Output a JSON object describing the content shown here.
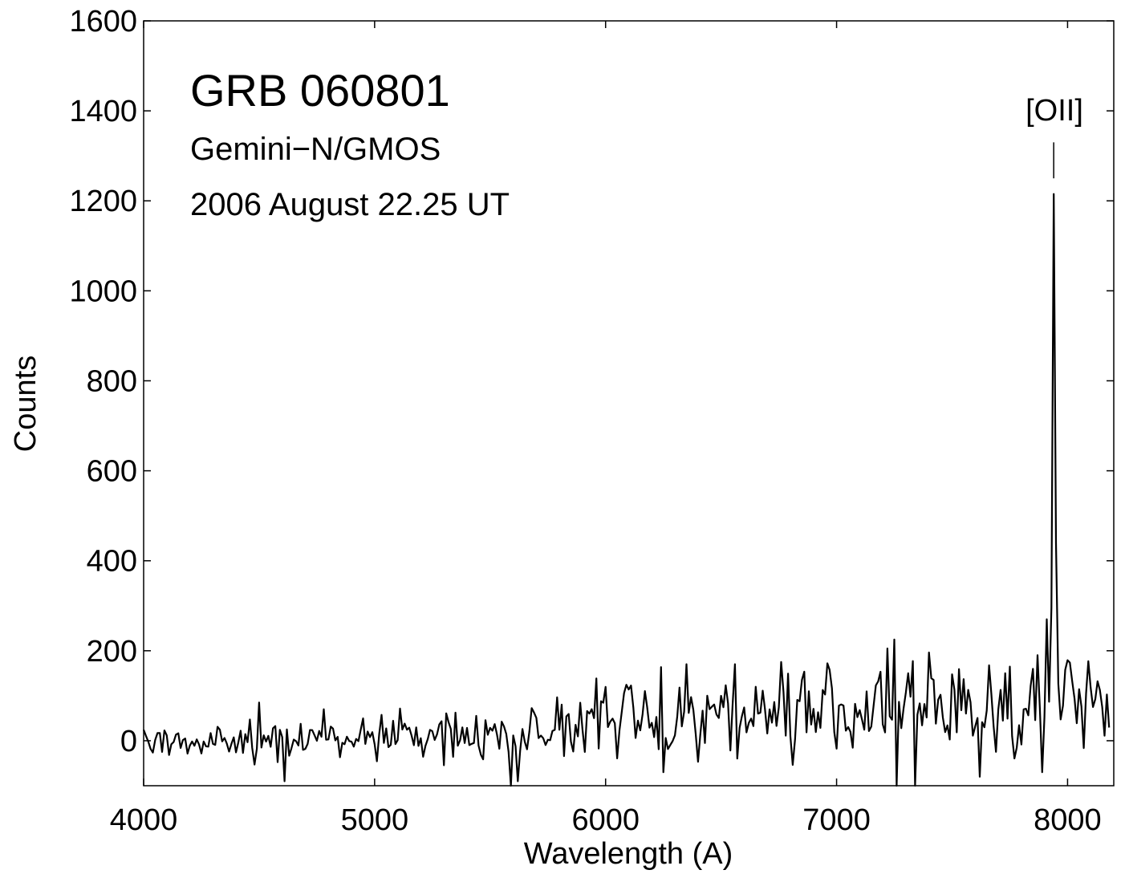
{
  "chart_data": {
    "type": "line",
    "xlabel": "Wavelength  (A)",
    "ylabel": "Counts",
    "xlim": [
      4000,
      8200
    ],
    "ylim": [
      -100,
      1600
    ],
    "xticks": [
      4000,
      5000,
      6000,
      7000,
      8000
    ],
    "yticks": [
      0,
      200,
      400,
      600,
      800,
      1000,
      1200,
      1400,
      1600
    ],
    "grid": false,
    "annotations": {
      "title": "GRB 060801",
      "instrument": "Gemini−N/GMOS",
      "date": "2006 August 22.25 UT"
    },
    "line_marker": {
      "label": "[OII]",
      "x": 7940,
      "y_top": 1330,
      "y_bottom": 1250
    },
    "series": [
      {
        "color": "#000000",
        "x_start": 4000,
        "x_end": 8180,
        "x_step": 10,
        "trend": [
          [
            4000,
            0
          ],
          [
            5000,
            5
          ],
          [
            5500,
            15
          ],
          [
            6000,
            45
          ],
          [
            7000,
            70
          ],
          [
            7800,
            80
          ],
          [
            8180,
            90
          ]
        ],
        "noise": [
          [
            4000,
            20
          ],
          [
            5400,
            25
          ],
          [
            5900,
            45
          ],
          [
            8180,
            55
          ]
        ],
        "peak": {
          "x": 7940,
          "amplitude": 1120,
          "sigma": 6
        },
        "features": [
          {
            "x": 4500,
            "y": 85
          },
          {
            "x": 4610,
            "y": -90
          },
          {
            "x": 4780,
            "y": 70
          },
          {
            "x": 5590,
            "y": -100
          },
          {
            "x": 5620,
            "y": -90
          },
          {
            "x": 6250,
            "y": -70
          },
          {
            "x": 6350,
            "y": 170
          },
          {
            "x": 6560,
            "y": 170
          },
          {
            "x": 6760,
            "y": 175
          },
          {
            "x": 7220,
            "y": 205
          },
          {
            "x": 7250,
            "y": 225
          },
          {
            "x": 7260,
            "y": -100
          },
          {
            "x": 7340,
            "y": -100
          },
          {
            "x": 7620,
            "y": -80
          },
          {
            "x": 7870,
            "y": 190
          },
          {
            "x": 7890,
            "y": -70
          },
          {
            "x": 7910,
            "y": 270
          }
        ],
        "seed": 60801
      }
    ]
  }
}
